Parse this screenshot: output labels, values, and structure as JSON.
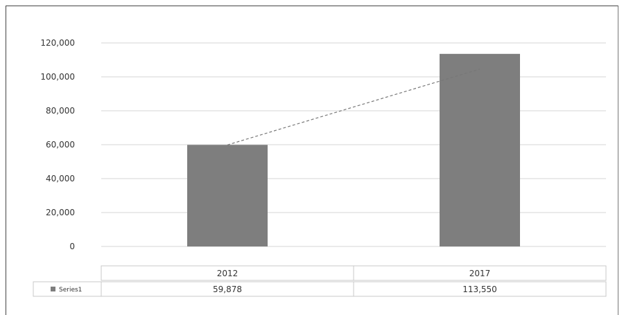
{
  "chart_data": {
    "type": "bar",
    "categories": [
      "2012",
      "2017"
    ],
    "series": [
      {
        "name": "Series1",
        "values": [
          59878,
          113550
        ],
        "color": "#7e7e7e"
      }
    ],
    "value_labels": [
      "59,878",
      "113,550"
    ],
    "y_ticks": [
      "0",
      "20,000",
      "40,000",
      "60,000",
      "80,000",
      "100,000",
      "120,000"
    ],
    "ylim": [
      0,
      120000
    ],
    "grid": true,
    "connector_line": "dashed",
    "legend": "data-table-left",
    "data_table": true
  }
}
